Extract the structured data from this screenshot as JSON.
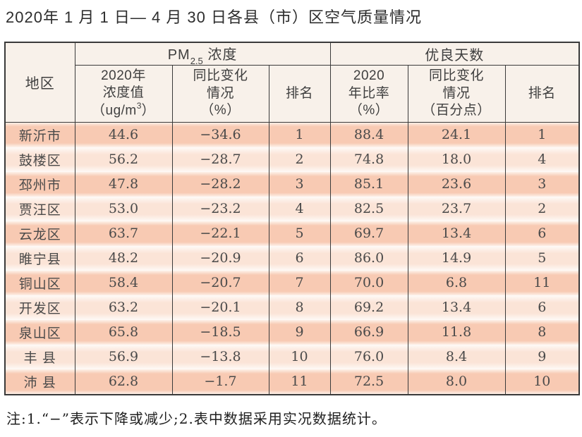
{
  "title": "2020年 1 月 1 日— 4 月 30 日各县（市）区空气质量情况",
  "table": {
    "group_header": {
      "region_label": "地区",
      "pm_group": {
        "prefix": "PM",
        "sub": "2.5",
        "suffix": " 浓度"
      },
      "good_days_group": "优良天数"
    },
    "columns": {
      "pm_value": {
        "line1": "2020年",
        "line2": "浓度值",
        "unit_prefix": "（ug/m",
        "unit_sup": "3",
        "unit_suffix": "）"
      },
      "pm_change": {
        "line1": "同比变化",
        "line2": "情况",
        "line3": "（%）"
      },
      "pm_rank": "排名",
      "gd_ratio": {
        "line1": "2020",
        "line2": "年比率",
        "line3": "（%）"
      },
      "gd_change": {
        "line1": "同比变化",
        "line2": "情况",
        "line3": "（百分点）"
      },
      "gd_rank": "排名"
    },
    "rows": [
      [
        "新沂市",
        "44.6",
        "−34.6",
        "1",
        "88.4",
        "24.1",
        "1"
      ],
      [
        "鼓楼区",
        "56.2",
        "−28.7",
        "2",
        "74.8",
        "18.0",
        "4"
      ],
      [
        "邳州市",
        "47.8",
        "−28.2",
        "3",
        "85.1",
        "23.6",
        "3"
      ],
      [
        "贾汪区",
        "53.0",
        "−23.2",
        "4",
        "82.5",
        "23.7",
        "2"
      ],
      [
        "云龙区",
        "63.7",
        "−22.1",
        "5",
        "69.7",
        "13.4",
        "6"
      ],
      [
        "睢宁县",
        "48.2",
        "−20.9",
        "6",
        "86.0",
        "14.9",
        "5"
      ],
      [
        "铜山区",
        "58.4",
        "−20.7",
        "7",
        "70.0",
        "6.8",
        "11"
      ],
      [
        "开发区",
        "63.2",
        "−20.1",
        "8",
        "69.2",
        "13.4",
        "6"
      ],
      [
        "泉山区",
        "65.8",
        "−18.5",
        "9",
        "66.9",
        "11.8",
        "8"
      ],
      [
        "丰 县",
        "56.9",
        "−13.8",
        "10",
        "76.0",
        "8.4",
        "9"
      ],
      [
        "沛 县",
        "62.8",
        "−1.7",
        "11",
        "72.5",
        "8.0",
        "10"
      ]
    ]
  },
  "note": "注:1.“−”表示下降或减少;2.表中数据采用实况数据统计。",
  "colors": {
    "border": "#3a3a3a",
    "header_bg": "#f8f1ea",
    "row_odd": "#f8cab3",
    "row_even": "#fbe4d7",
    "text": "#4a4a4a"
  }
}
